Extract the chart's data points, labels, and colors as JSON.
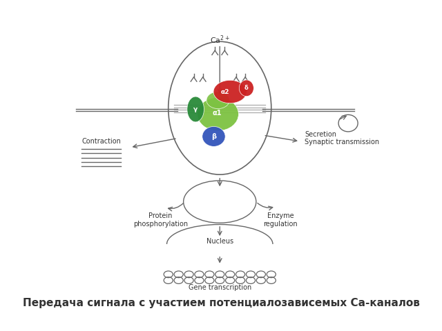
{
  "title": "Передача сигнала с участием потенциалозависемых Са-каналов",
  "title_fontsize": 11,
  "background_color": "#ffffff",
  "line_color": "#666666",
  "text_color": "#333333",
  "labels": {
    "ca2plus": "Ca2+",
    "contraction": "Contraction",
    "secretion": "Secretion\nSynaptic transmission",
    "protein_phosphorylation": "Protein\nphosphorylation",
    "enzyme_regulation": "Enzyme\nregulation",
    "nucleus": "Nucleus",
    "gene_transcription": "Gene transcription"
  },
  "subunit_labels": {
    "alpha1": "α1",
    "alpha2": "α2",
    "beta": "β",
    "gamma": "γ",
    "delta": "δ"
  },
  "colors": {
    "alpha1_color": "#7dc242",
    "alpha2_color": "#cc2222",
    "beta_color": "#3355bb",
    "gamma_color": "#2a8a3a",
    "membrane_color": "#bbbbbb",
    "line_color": "#666666"
  }
}
